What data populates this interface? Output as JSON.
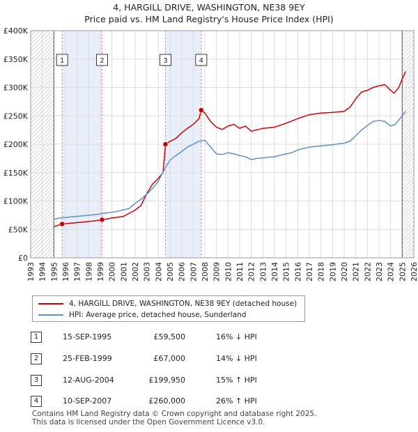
{
  "title": "4, HARGILL DRIVE, WASHINGTON, NE38 9EY",
  "subtitle": "Price paid vs. HM Land Registry's House Price Index (HPI)",
  "colors": {
    "property": "#cc0000",
    "hpi": "#5b8fd0",
    "shade": "#e8eefa",
    "grid": "#dddddd"
  },
  "legend": {
    "property": "4, HARGILL DRIVE, WASHINGTON, NE38 9EY (detached house)",
    "hpi": "HPI: Average price, detached house, Sunderland"
  },
  "transactions": [
    {
      "num": "1",
      "date": "15-SEP-1995",
      "price": "£59,500",
      "hpi": "16% ↓ HPI"
    },
    {
      "num": "2",
      "date": "25-FEB-1999",
      "price": "£67,000",
      "hpi": "14% ↓ HPI"
    },
    {
      "num": "3",
      "date": "12-AUG-2004",
      "price": "£199,950",
      "hpi": "15% ↑ HPI"
    },
    {
      "num": "4",
      "date": "10-SEP-2007",
      "price": "£260,000",
      "hpi": "26% ↑ HPI"
    }
  ],
  "footer": {
    "line1": "Contains HM Land Registry data © Crown copyright and database right 2025.",
    "line2": "This data is licensed under the Open Government Licence v3.0."
  },
  "chart_data": {
    "type": "line",
    "title": "4, HARGILL DRIVE, WASHINGTON, NE38 9EY",
    "subtitle": "Price paid vs. HM Land Registry's House Price Index (HPI)",
    "xlabel": "",
    "ylabel": "",
    "xlim": [
      1993,
      2026
    ],
    "ylim": [
      0,
      400000
    ],
    "x_ticks": [
      "1993",
      "1994",
      "1995",
      "1996",
      "1997",
      "1998",
      "1999",
      "2000",
      "2001",
      "2002",
      "2003",
      "2004",
      "2005",
      "2006",
      "2007",
      "2008",
      "2009",
      "2010",
      "2011",
      "2012",
      "2013",
      "2014",
      "2015",
      "2016",
      "2017",
      "2018",
      "2019",
      "2020",
      "2021",
      "2022",
      "2023",
      "2024",
      "2025",
      "2026"
    ],
    "y_ticks": [
      {
        "value": 0,
        "label": "£0"
      },
      {
        "value": 50000,
        "label": "£50K"
      },
      {
        "value": 100000,
        "label": "£100K"
      },
      {
        "value": 150000,
        "label": "£150K"
      },
      {
        "value": 200000,
        "label": "£200K"
      },
      {
        "value": 250000,
        "label": "£250K"
      },
      {
        "value": 300000,
        "label": "£300K"
      },
      {
        "value": 350000,
        "label": "£350K"
      },
      {
        "value": 400000,
        "label": "£400K"
      }
    ],
    "hatched_ranges": [
      [
        1993,
        1995
      ],
      [
        2025,
        2026
      ]
    ],
    "shaded_ranges": [
      [
        1995.7,
        1999.15
      ],
      [
        2004.6,
        2007.7
      ]
    ],
    "sales": [
      {
        "label": "1",
        "x": 1995.71,
        "y": 59500
      },
      {
        "label": "2",
        "x": 1999.15,
        "y": 67000
      },
      {
        "label": "3",
        "x": 2004.61,
        "y": 199950
      },
      {
        "label": "4",
        "x": 2007.69,
        "y": 260000
      }
    ],
    "series": [
      {
        "name": "4, HARGILL DRIVE, WASHINGTON, NE38 9EY (detached house)",
        "color": "#cc0000",
        "points": [
          [
            1995.0,
            55000
          ],
          [
            1995.71,
            59500
          ],
          [
            1996.5,
            61000
          ],
          [
            1997.5,
            63000
          ],
          [
            1998.5,
            65000
          ],
          [
            1999.15,
            67000
          ],
          [
            2000.0,
            70000
          ],
          [
            2001.0,
            73000
          ],
          [
            2002.0,
            84000
          ],
          [
            2002.5,
            92000
          ],
          [
            2003.0,
            113000
          ],
          [
            2003.5,
            130000
          ],
          [
            2004.0,
            140000
          ],
          [
            2004.4,
            150000
          ],
          [
            2004.61,
            199950
          ],
          [
            2005.0,
            205000
          ],
          [
            2005.5,
            210000
          ],
          [
            2006.0,
            220000
          ],
          [
            2006.5,
            228000
          ],
          [
            2007.0,
            235000
          ],
          [
            2007.5,
            245000
          ],
          [
            2007.69,
            260000
          ],
          [
            2008.0,
            255000
          ],
          [
            2008.5,
            240000
          ],
          [
            2009.0,
            230000
          ],
          [
            2009.5,
            226000
          ],
          [
            2010.0,
            232000
          ],
          [
            2010.5,
            235000
          ],
          [
            2011.0,
            228000
          ],
          [
            2011.5,
            232000
          ],
          [
            2012.0,
            223000
          ],
          [
            2013.0,
            228000
          ],
          [
            2014.0,
            230000
          ],
          [
            2015.0,
            237000
          ],
          [
            2016.0,
            245000
          ],
          [
            2017.0,
            252000
          ],
          [
            2018.0,
            255000
          ],
          [
            2019.0,
            256000
          ],
          [
            2020.0,
            258000
          ],
          [
            2020.5,
            265000
          ],
          [
            2021.0,
            280000
          ],
          [
            2021.5,
            292000
          ],
          [
            2022.0,
            295000
          ],
          [
            2022.5,
            300000
          ],
          [
            2023.0,
            303000
          ],
          [
            2023.5,
            305000
          ],
          [
            2024.0,
            295000
          ],
          [
            2024.3,
            290000
          ],
          [
            2024.7,
            300000
          ],
          [
            2025.0,
            315000
          ],
          [
            2025.3,
            328000
          ]
        ]
      },
      {
        "name": "HPI: Average price, detached house, Sunderland",
        "color": "#5b8fd0",
        "points": [
          [
            1995.0,
            68000
          ],
          [
            1995.5,
            70000
          ],
          [
            1996.5,
            72000
          ],
          [
            1997.5,
            74000
          ],
          [
            1998.5,
            76000
          ],
          [
            1999.5,
            79000
          ],
          [
            2000.5,
            82000
          ],
          [
            2001.5,
            87000
          ],
          [
            2002.0,
            96000
          ],
          [
            2002.5,
            103000
          ],
          [
            2003.0,
            112000
          ],
          [
            2003.5,
            122000
          ],
          [
            2004.0,
            135000
          ],
          [
            2004.5,
            155000
          ],
          [
            2005.0,
            172000
          ],
          [
            2005.5,
            180000
          ],
          [
            2006.0,
            187000
          ],
          [
            2006.5,
            195000
          ],
          [
            2007.0,
            200000
          ],
          [
            2007.5,
            205000
          ],
          [
            2008.0,
            207000
          ],
          [
            2008.5,
            195000
          ],
          [
            2009.0,
            183000
          ],
          [
            2009.5,
            182000
          ],
          [
            2010.0,
            185000
          ],
          [
            2010.5,
            183000
          ],
          [
            2011.0,
            180000
          ],
          [
            2011.5,
            178000
          ],
          [
            2012.0,
            173000
          ],
          [
            2012.5,
            175000
          ],
          [
            2013.0,
            176000
          ],
          [
            2014.0,
            178000
          ],
          [
            2015.0,
            183000
          ],
          [
            2015.5,
            185000
          ],
          [
            2016.0,
            190000
          ],
          [
            2017.0,
            195000
          ],
          [
            2018.0,
            197000
          ],
          [
            2019.0,
            199000
          ],
          [
            2020.0,
            202000
          ],
          [
            2020.5,
            205000
          ],
          [
            2021.0,
            215000
          ],
          [
            2021.5,
            225000
          ],
          [
            2022.0,
            233000
          ],
          [
            2022.5,
            240000
          ],
          [
            2023.0,
            242000
          ],
          [
            2023.5,
            240000
          ],
          [
            2024.0,
            232000
          ],
          [
            2024.4,
            235000
          ],
          [
            2024.8,
            245000
          ],
          [
            2025.3,
            258000
          ]
        ]
      }
    ]
  }
}
